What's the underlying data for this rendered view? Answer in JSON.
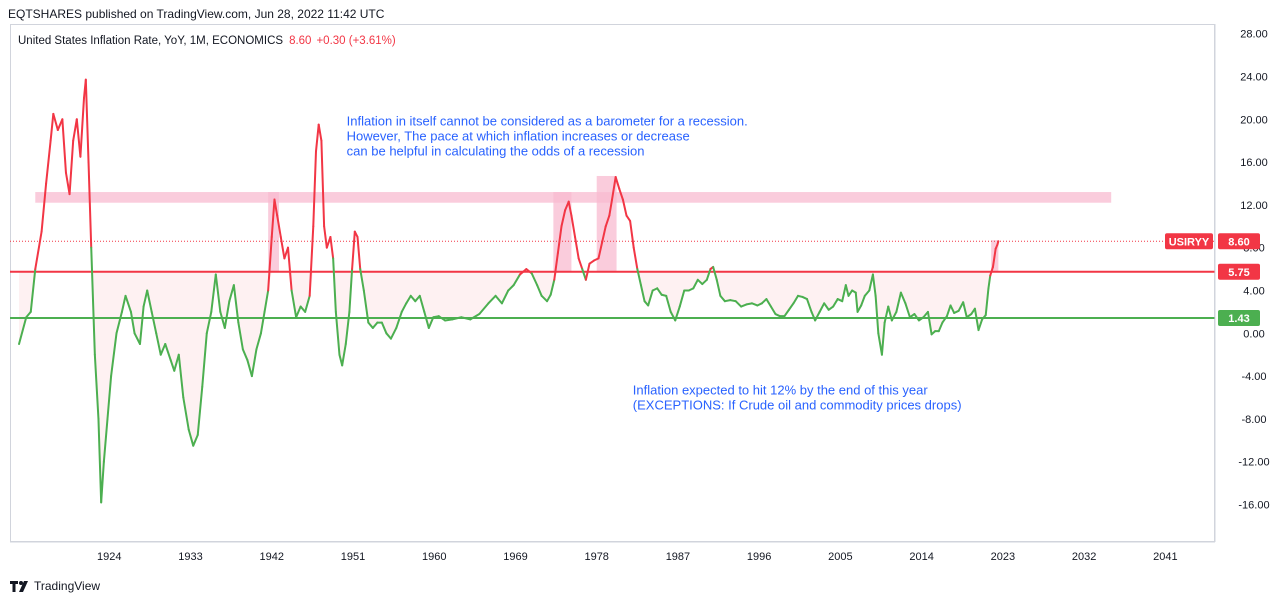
{
  "header": {
    "published": "EQTSHARES published on TradingView.com, Jun 28, 2022 11:42 UTC"
  },
  "legend": {
    "symbol": "United States Inflation Rate, YoY, 1M, ECONOMICS",
    "value": "8.60",
    "change": "+0.30 (+3.61%)"
  },
  "footer": {
    "brand": "TradingView"
  },
  "colors": {
    "up": "#f23645",
    "down": "#4caf50",
    "annotation": "#2962ff",
    "zone": "#f8bbd0"
  },
  "chart_data": {
    "type": "line",
    "xlim": [
      1913.0,
      2046.5
    ],
    "ylim": [
      -19.5,
      28.9
    ],
    "x_ticks": [
      1924,
      1933,
      1942,
      1951,
      1960,
      1969,
      1978,
      1987,
      1996,
      2005,
      2014,
      2023,
      2032,
      2041
    ],
    "y_ticks": [
      28.0,
      24.0,
      20.0,
      16.0,
      12.0,
      8.0,
      4.0,
      0.0,
      -4.0,
      -8.0,
      -12.0,
      -16.0
    ],
    "y_tick_labels": [
      "28.00",
      "24.00",
      "20.00",
      "16.00",
      "12.00",
      "8.00",
      "4.00",
      "0.00",
      "-4.00",
      "-8.00",
      "-12.00",
      "-16.00"
    ],
    "series": [
      {
        "color_rule": "red above 5.75, green below",
        "points": [
          [
            1914.0,
            -1.0
          ],
          [
            1914.8,
            1.5
          ],
          [
            1915.3,
            2.0
          ],
          [
            1915.8,
            6.0
          ],
          [
            1916.5,
            9.5
          ],
          [
            1917.0,
            14.0
          ],
          [
            1917.5,
            18.0
          ],
          [
            1917.8,
            20.5
          ],
          [
            1918.3,
            19.0
          ],
          [
            1918.8,
            20.0
          ],
          [
            1919.2,
            15.0
          ],
          [
            1919.6,
            13.0
          ],
          [
            1920.0,
            18.0
          ],
          [
            1920.4,
            20.0
          ],
          [
            1920.8,
            16.5
          ],
          [
            1921.2,
            22.0
          ],
          [
            1921.4,
            23.7
          ],
          [
            1921.7,
            16.0
          ],
          [
            1922.0,
            8.0
          ],
          [
            1922.4,
            -2.0
          ],
          [
            1922.8,
            -8.0
          ],
          [
            1923.1,
            -15.8
          ],
          [
            1923.4,
            -12.0
          ],
          [
            1923.8,
            -8.0
          ],
          [
            1924.2,
            -4.0
          ],
          [
            1924.8,
            0.0
          ],
          [
            1925.4,
            2.0
          ],
          [
            1925.8,
            3.5
          ],
          [
            1926.4,
            2.0
          ],
          [
            1926.8,
            0.0
          ],
          [
            1927.4,
            -1.0
          ],
          [
            1927.8,
            2.5
          ],
          [
            1928.2,
            4.0
          ],
          [
            1928.7,
            2.0
          ],
          [
            1929.2,
            0.0
          ],
          [
            1929.7,
            -2.0
          ],
          [
            1930.2,
            -1.0
          ],
          [
            1930.8,
            -2.5
          ],
          [
            1931.2,
            -3.5
          ],
          [
            1931.7,
            -2.0
          ],
          [
            1932.2,
            -6.0
          ],
          [
            1932.8,
            -9.0
          ],
          [
            1933.3,
            -10.5
          ],
          [
            1933.8,
            -9.5
          ],
          [
            1934.3,
            -5.0
          ],
          [
            1934.8,
            0.0
          ],
          [
            1935.3,
            2.0
          ],
          [
            1935.8,
            5.5
          ],
          [
            1936.3,
            2.0
          ],
          [
            1936.8,
            0.5
          ],
          [
            1937.3,
            3.0
          ],
          [
            1937.8,
            4.5
          ],
          [
            1938.3,
            1.0
          ],
          [
            1938.8,
            -1.5
          ],
          [
            1939.3,
            -2.5
          ],
          [
            1939.8,
            -4.0
          ],
          [
            1940.3,
            -1.5
          ],
          [
            1940.8,
            0.0
          ],
          [
            1941.2,
            2.0
          ],
          [
            1941.6,
            4.0
          ],
          [
            1942.0,
            9.0
          ],
          [
            1942.3,
            12.5
          ],
          [
            1942.6,
            11.0
          ],
          [
            1943.0,
            9.0
          ],
          [
            1943.4,
            7.0
          ],
          [
            1943.8,
            8.0
          ],
          [
            1944.2,
            4.0
          ],
          [
            1944.7,
            1.5
          ],
          [
            1945.2,
            2.5
          ],
          [
            1945.7,
            2.0
          ],
          [
            1946.2,
            3.5
          ],
          [
            1946.6,
            10.0
          ],
          [
            1946.9,
            17.0
          ],
          [
            1947.2,
            19.5
          ],
          [
            1947.5,
            18.0
          ],
          [
            1947.8,
            10.0
          ],
          [
            1948.1,
            8.0
          ],
          [
            1948.5,
            9.0
          ],
          [
            1948.8,
            7.0
          ],
          [
            1949.1,
            2.0
          ],
          [
            1949.5,
            -2.0
          ],
          [
            1949.8,
            -3.0
          ],
          [
            1950.2,
            -1.0
          ],
          [
            1950.6,
            2.0
          ],
          [
            1950.9,
            6.0
          ],
          [
            1951.2,
            9.5
          ],
          [
            1951.5,
            9.0
          ],
          [
            1951.8,
            6.0
          ],
          [
            1952.2,
            4.0
          ],
          [
            1952.7,
            1.0
          ],
          [
            1953.2,
            0.5
          ],
          [
            1953.7,
            1.0
          ],
          [
            1954.2,
            1.0
          ],
          [
            1954.7,
            0.0
          ],
          [
            1955.2,
            -0.5
          ],
          [
            1955.8,
            0.5
          ],
          [
            1956.4,
            2.0
          ],
          [
            1956.9,
            2.8
          ],
          [
            1957.4,
            3.5
          ],
          [
            1957.9,
            3.0
          ],
          [
            1958.4,
            3.5
          ],
          [
            1958.9,
            2.0
          ],
          [
            1959.4,
            0.5
          ],
          [
            1959.9,
            1.5
          ],
          [
            1960.5,
            1.6
          ],
          [
            1961.2,
            1.2
          ],
          [
            1962.0,
            1.3
          ],
          [
            1963.0,
            1.5
          ],
          [
            1964.0,
            1.3
          ],
          [
            1965.0,
            1.8
          ],
          [
            1966.0,
            2.8
          ],
          [
            1966.8,
            3.5
          ],
          [
            1967.5,
            2.8
          ],
          [
            1968.2,
            4.0
          ],
          [
            1968.8,
            4.5
          ],
          [
            1969.5,
            5.5
          ],
          [
            1970.2,
            6.0
          ],
          [
            1970.8,
            5.6
          ],
          [
            1971.4,
            4.5
          ],
          [
            1971.9,
            3.5
          ],
          [
            1972.5,
            3.0
          ],
          [
            1972.9,
            3.6
          ],
          [
            1973.3,
            5.0
          ],
          [
            1973.7,
            7.5
          ],
          [
            1974.1,
            10.0
          ],
          [
            1974.5,
            11.5
          ],
          [
            1974.9,
            12.3
          ],
          [
            1975.2,
            11.0
          ],
          [
            1975.6,
            9.0
          ],
          [
            1976.0,
            7.0
          ],
          [
            1976.4,
            6.0
          ],
          [
            1976.8,
            5.0
          ],
          [
            1977.2,
            6.5
          ],
          [
            1977.7,
            6.8
          ],
          [
            1978.2,
            7.0
          ],
          [
            1978.6,
            8.5
          ],
          [
            1979.0,
            10.0
          ],
          [
            1979.4,
            11.0
          ],
          [
            1979.7,
            12.5
          ],
          [
            1980.1,
            14.6
          ],
          [
            1980.5,
            13.5
          ],
          [
            1980.9,
            12.5
          ],
          [
            1981.3,
            11.0
          ],
          [
            1981.7,
            10.5
          ],
          [
            1982.1,
            8.0
          ],
          [
            1982.5,
            6.0
          ],
          [
            1982.9,
            4.5
          ],
          [
            1983.3,
            3.0
          ],
          [
            1983.7,
            2.6
          ],
          [
            1984.2,
            4.0
          ],
          [
            1984.7,
            4.2
          ],
          [
            1985.2,
            3.6
          ],
          [
            1985.7,
            3.5
          ],
          [
            1986.2,
            2.0
          ],
          [
            1986.7,
            1.2
          ],
          [
            1987.2,
            2.5
          ],
          [
            1987.7,
            4.0
          ],
          [
            1988.2,
            4.0
          ],
          [
            1988.7,
            4.2
          ],
          [
            1989.2,
            5.0
          ],
          [
            1989.7,
            4.6
          ],
          [
            1990.2,
            5.0
          ],
          [
            1990.6,
            6.0
          ],
          [
            1990.9,
            6.2
          ],
          [
            1991.3,
            5.0
          ],
          [
            1991.7,
            3.5
          ],
          [
            1992.2,
            3.0
          ],
          [
            1992.8,
            3.1
          ],
          [
            1993.4,
            3.0
          ],
          [
            1994.0,
            2.5
          ],
          [
            1994.6,
            2.7
          ],
          [
            1995.2,
            2.8
          ],
          [
            1995.8,
            2.6
          ],
          [
            1996.3,
            2.8
          ],
          [
            1996.8,
            3.2
          ],
          [
            1997.3,
            2.5
          ],
          [
            1997.8,
            1.8
          ],
          [
            1998.3,
            1.6
          ],
          [
            1998.8,
            1.6
          ],
          [
            1999.3,
            2.2
          ],
          [
            1999.8,
            2.8
          ],
          [
            2000.3,
            3.5
          ],
          [
            2000.8,
            3.4
          ],
          [
            2001.3,
            3.2
          ],
          [
            2001.8,
            2.0
          ],
          [
            2002.2,
            1.2
          ],
          [
            2002.7,
            2.0
          ],
          [
            2003.2,
            2.8
          ],
          [
            2003.7,
            2.2
          ],
          [
            2004.2,
            2.5
          ],
          [
            2004.7,
            3.2
          ],
          [
            2005.2,
            3.0
          ],
          [
            2005.6,
            4.5
          ],
          [
            2005.9,
            3.5
          ],
          [
            2006.3,
            4.0
          ],
          [
            2006.7,
            3.8
          ],
          [
            2006.9,
            2.0
          ],
          [
            2007.3,
            2.6
          ],
          [
            2007.7,
            3.5
          ],
          [
            2008.2,
            4.0
          ],
          [
            2008.6,
            5.5
          ],
          [
            2008.9,
            3.5
          ],
          [
            2009.2,
            0.0
          ],
          [
            2009.6,
            -2.0
          ],
          [
            2009.9,
            1.0
          ],
          [
            2010.3,
            2.5
          ],
          [
            2010.7,
            1.2
          ],
          [
            2011.2,
            2.0
          ],
          [
            2011.7,
            3.8
          ],
          [
            2012.2,
            2.8
          ],
          [
            2012.7,
            1.5
          ],
          [
            2013.2,
            1.8
          ],
          [
            2013.7,
            1.2
          ],
          [
            2014.2,
            1.5
          ],
          [
            2014.7,
            2.0
          ],
          [
            2015.1,
            -0.1
          ],
          [
            2015.5,
            0.2
          ],
          [
            2015.9,
            0.2
          ],
          [
            2016.3,
            1.0
          ],
          [
            2016.8,
            1.6
          ],
          [
            2017.2,
            2.6
          ],
          [
            2017.6,
            1.9
          ],
          [
            2018.1,
            2.1
          ],
          [
            2018.6,
            2.9
          ],
          [
            2019.0,
            1.5
          ],
          [
            2019.5,
            1.8
          ],
          [
            2019.9,
            2.3
          ],
          [
            2020.3,
            0.3
          ],
          [
            2020.7,
            1.3
          ],
          [
            2021.1,
            1.7
          ],
          [
            2021.4,
            4.2
          ],
          [
            2021.6,
            5.4
          ],
          [
            2021.9,
            6.2
          ],
          [
            2022.2,
            7.9
          ],
          [
            2022.4,
            8.3
          ],
          [
            2022.5,
            8.6
          ]
        ]
      }
    ],
    "horizontal_levels": [
      {
        "label": "5.75",
        "value": 5.75,
        "color": "#f23645"
      },
      {
        "label": "1.43",
        "value": 1.43,
        "color": "#4caf50"
      }
    ],
    "last_value": {
      "label": "USIRYY",
      "value_label": "8.60",
      "value": 8.6
    },
    "zones": [
      {
        "x0": 1915.8,
        "x1": 2035.0,
        "y0": 12.2,
        "y1": 13.2
      },
      {
        "x0": 1941.6,
        "x1": 1942.8,
        "y0": 5.75,
        "y1": 13.2
      },
      {
        "x0": 1973.2,
        "x1": 1975.2,
        "y0": 5.75,
        "y1": 13.2
      },
      {
        "x0": 1978.0,
        "x1": 1980.2,
        "y0": 5.75,
        "y1": 14.7
      },
      {
        "x0": 2021.7,
        "x1": 2022.5,
        "y0": 5.75,
        "y1": 8.7
      }
    ],
    "annotations": [
      {
        "lines": [
          "Inflation in itself cannot be considered as a barometer for a recession.",
          "However, The pace at which inflation increases or decrease",
          "can be helpful in calculating the odds of a recession"
        ],
        "x": 1950.3,
        "y": 19.4
      },
      {
        "lines": [
          "Inflation expected to hit 12% by the end of this year",
          "(EXCEPTIONS: If Crude oil and commodity prices drops)"
        ],
        "x": 1982.0,
        "y": -5.7
      }
    ]
  }
}
